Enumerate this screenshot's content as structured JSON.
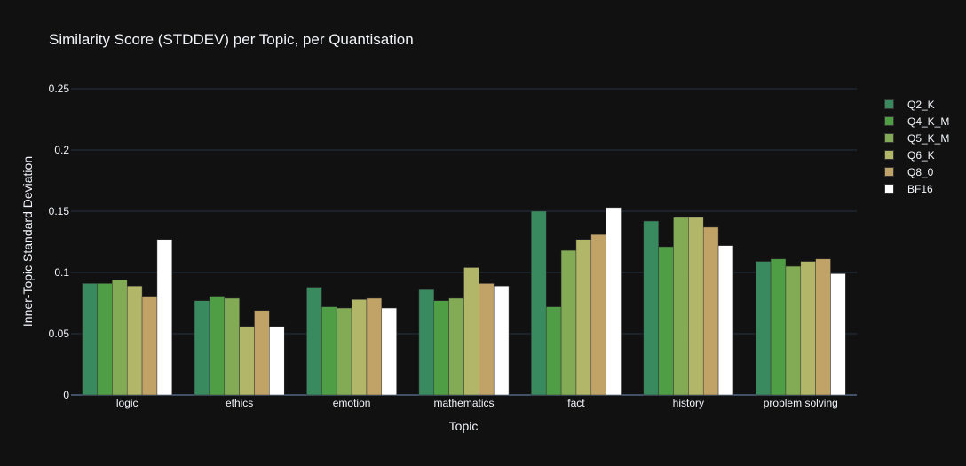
{
  "chart_data": {
    "type": "bar",
    "title": "Similarity Score (STDDEV) per Topic, per Quantisation",
    "xlabel": "Topic",
    "ylabel": "Inner-Topic Standard Deviation",
    "categories": [
      "logic",
      "ethics",
      "emotion",
      "mathematics",
      "fact",
      "history",
      "problem solving"
    ],
    "ylim": [
      0,
      0.25
    ],
    "yticks": [
      "0",
      "0.05",
      "0.1",
      "0.15",
      "0.2",
      "0.25"
    ],
    "ytick_values": [
      0,
      0.05,
      0.1,
      0.15,
      0.2,
      0.25
    ],
    "grid": true,
    "legend_position": "right",
    "series": [
      {
        "name": "Q2_K",
        "color": "#3a8a60",
        "values": [
          0.091,
          0.077,
          0.088,
          0.086,
          0.15,
          0.142,
          0.109
        ]
      },
      {
        "name": "Q4_K_M",
        "color": "#4f9e46",
        "values": [
          0.091,
          0.08,
          0.072,
          0.077,
          0.072,
          0.121,
          0.111
        ]
      },
      {
        "name": "Q5_K_M",
        "color": "#83ab55",
        "values": [
          0.094,
          0.079,
          0.071,
          0.079,
          0.118,
          0.145,
          0.105
        ]
      },
      {
        "name": "Q6_K",
        "color": "#b2b669",
        "values": [
          0.089,
          0.056,
          0.078,
          0.104,
          0.127,
          0.145,
          0.109
        ]
      },
      {
        "name": "Q8_0",
        "color": "#c2a367",
        "values": [
          0.08,
          0.069,
          0.079,
          0.091,
          0.131,
          0.137,
          0.111
        ]
      },
      {
        "name": "BF16",
        "color": "#ffffff",
        "values": [
          0.127,
          0.056,
          0.071,
          0.089,
          0.153,
          0.122,
          0.099
        ]
      }
    ]
  }
}
